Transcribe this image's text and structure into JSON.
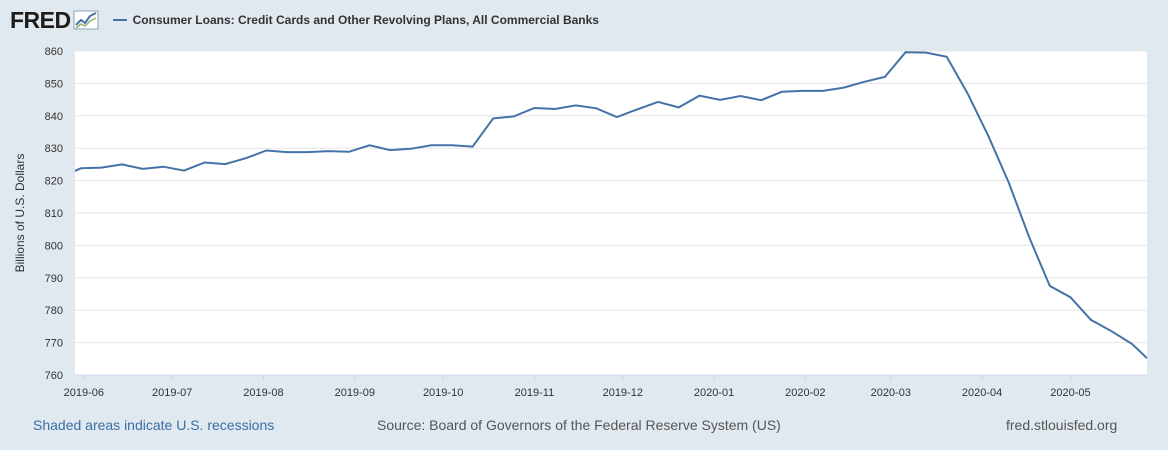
{
  "header": {
    "logo": "FRED",
    "logo_icon": "fred-chart-icon",
    "series_title": "Consumer Loans: Credit Cards and Other Revolving Plans, All Commercial Banks"
  },
  "footer": {
    "recession_note": "Shaded areas indicate U.S. recessions",
    "source": "Source: Board of Governors of the Federal Reserve System (US)",
    "site": "fred.stlouisfed.org"
  },
  "colors": {
    "series": "#4572a7",
    "background": "#e1e9f0",
    "plot": "#ffffff",
    "grid": "#e6e6e6"
  },
  "chart_data": {
    "type": "line",
    "title": "Consumer Loans: Credit Cards and Other Revolving Plans, All Commercial Banks",
    "xlabel": "",
    "ylabel": "Billions of U.S. Dollars",
    "ylim": [
      760,
      860
    ],
    "yticks": [
      760,
      770,
      780,
      790,
      800,
      810,
      820,
      830,
      840,
      850,
      860
    ],
    "xlim": [
      "2019-05-29",
      "2020-05-27"
    ],
    "xticks": [
      "2019-06",
      "2019-07",
      "2019-08",
      "2019-09",
      "2019-10",
      "2019-11",
      "2019-12",
      "2020-01",
      "2020-02",
      "2020-03",
      "2020-04",
      "2020-05"
    ],
    "grid": "horizontal",
    "legend": "top-left",
    "series": [
      {
        "name": "Consumer Loans: Credit Cards and Other Revolving Plans, All Commercial Banks",
        "x": [
          "2019-05-29",
          "2019-05-31",
          "2019-06-07",
          "2019-06-14",
          "2019-06-21",
          "2019-06-28",
          "2019-07-05",
          "2019-07-12",
          "2019-07-19",
          "2019-07-26",
          "2019-08-02",
          "2019-08-09",
          "2019-08-16",
          "2019-08-23",
          "2019-08-30",
          "2019-09-06",
          "2019-09-13",
          "2019-09-20",
          "2019-09-27",
          "2019-10-04",
          "2019-10-11",
          "2019-10-18",
          "2019-10-25",
          "2019-11-01",
          "2019-11-08",
          "2019-11-15",
          "2019-11-22",
          "2019-11-29",
          "2019-12-06",
          "2019-12-13",
          "2019-12-20",
          "2019-12-27",
          "2020-01-03",
          "2020-01-10",
          "2020-01-17",
          "2020-01-24",
          "2020-01-31",
          "2020-02-07",
          "2020-02-14",
          "2020-02-21",
          "2020-02-28",
          "2020-03-06",
          "2020-03-13",
          "2020-03-20",
          "2020-03-27",
          "2020-04-03",
          "2020-04-10",
          "2020-04-17",
          "2020-04-24",
          "2020-05-01",
          "2020-05-08",
          "2020-05-15",
          "2020-05-22",
          "2020-05-27"
        ],
        "values": [
          823.0,
          823.8,
          824.0,
          825.0,
          823.6,
          824.3,
          823.1,
          825.6,
          825.1,
          826.9,
          829.3,
          828.8,
          828.8,
          829.1,
          828.9,
          830.9,
          829.4,
          829.8,
          830.9,
          830.9,
          830.5,
          839.2,
          839.8,
          842.4,
          842.1,
          843.2,
          842.3,
          839.6,
          842.0,
          844.3,
          842.6,
          846.2,
          844.9,
          846.1,
          844.8,
          847.4,
          847.7,
          847.7,
          848.7,
          850.5,
          852.0,
          859.6,
          859.5,
          858.2,
          847.0,
          834.0,
          819.5,
          802.5,
          787.5,
          784.0,
          777.0,
          773.5,
          769.5,
          765.2
        ]
      }
    ]
  }
}
